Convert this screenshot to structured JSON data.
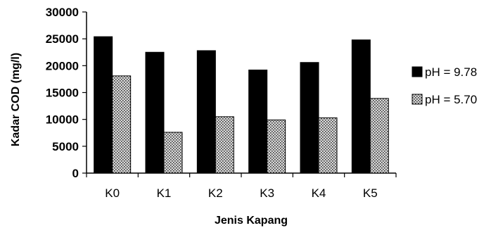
{
  "chart_data": {
    "type": "bar",
    "title": "",
    "xlabel": "Jenis Kapang",
    "ylabel": "Kadar COD (mg/l)",
    "ylim": [
      0,
      30000
    ],
    "yticks": [
      "0",
      "5000",
      "10000",
      "15000",
      "20000",
      "25000",
      "30000"
    ],
    "categories": [
      "K0",
      "K1",
      "K2",
      "K3",
      "K4",
      "K5"
    ],
    "series": [
      {
        "name": "pH = 9.78",
        "color": "#000000",
        "pattern": "solid",
        "values": [
          25400,
          22500,
          22800,
          19200,
          20600,
          24800
        ]
      },
      {
        "name": "pH = 5.70",
        "color": "#bdbdbd",
        "pattern": "dotted",
        "values": [
          18100,
          7600,
          10500,
          9900,
          10300,
          13900
        ]
      }
    ],
    "legend_position": "right",
    "grid": false
  }
}
